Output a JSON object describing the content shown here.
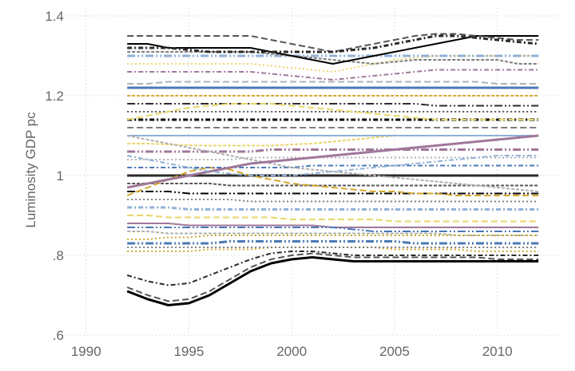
{
  "chart_data": {
    "type": "line",
    "title": "",
    "xlabel": "",
    "ylabel": "Luminosity GDP pc",
    "xlim": [
      1989,
      2013
    ],
    "ylim": [
      0.6,
      1.42
    ],
    "x_ticks": [
      "1990",
      "1995",
      "2000",
      "2005",
      "2010"
    ],
    "y_ticks": [
      ".6",
      ".8",
      "1",
      "1.2",
      "1.4"
    ],
    "grid": true,
    "legend": "none",
    "note": "",
    "palette": [
      "#000000",
      "#555555",
      "#2b2b2b",
      "#d4a72c",
      "#4a78b5",
      "#b0b0b0",
      "#a0779a",
      "#e8d66a",
      "#8fb0d6",
      "#7d7d7d"
    ],
    "series": [
      {
        "values": [
          0.71,
          0.69,
          0.675,
          0.68,
          0.7,
          0.73,
          0.76,
          0.78,
          0.79,
          0.795,
          0.79,
          0.785,
          0.785,
          0.785,
          0.785,
          0.785,
          0.785,
          0.785,
          0.785,
          0.785,
          0.785
        ]
      },
      {
        "values": [
          0.72,
          0.7,
          0.685,
          0.69,
          0.71,
          0.74,
          0.77,
          0.79,
          0.8,
          0.805,
          0.8,
          0.795,
          0.795,
          0.795,
          0.795,
          0.795,
          0.795,
          0.795,
          0.79,
          0.79,
          0.79
        ]
      },
      {
        "values": [
          0.75,
          0.735,
          0.725,
          0.73,
          0.75,
          0.77,
          0.79,
          0.805,
          0.81,
          0.81,
          0.805,
          0.8,
          0.8,
          0.8,
          0.8,
          0.8,
          0.8,
          0.8,
          0.8,
          0.8,
          0.8
        ]
      },
      {
        "values": [
          0.81,
          0.81,
          0.81,
          0.81,
          0.815,
          0.815,
          0.815,
          0.82,
          0.82,
          0.82,
          0.82,
          0.82,
          0.82,
          0.815,
          0.815,
          0.815,
          0.815,
          0.81,
          0.81,
          0.81,
          0.81
        ]
      },
      {
        "values": [
          0.83,
          0.83,
          0.83,
          0.83,
          0.83,
          0.835,
          0.835,
          0.835,
          0.835,
          0.835,
          0.835,
          0.835,
          0.835,
          0.835,
          0.83,
          0.83,
          0.83,
          0.83,
          0.83,
          0.83,
          0.83
        ]
      },
      {
        "values": [
          0.86,
          0.86,
          0.855,
          0.855,
          0.855,
          0.855,
          0.855,
          0.855,
          0.855,
          0.855,
          0.855,
          0.855,
          0.855,
          0.855,
          0.855,
          0.855,
          0.85,
          0.85,
          0.85,
          0.85,
          0.85
        ]
      },
      {
        "values": [
          0.88,
          0.88,
          0.88,
          0.875,
          0.875,
          0.875,
          0.875,
          0.875,
          0.875,
          0.875,
          0.87,
          0.87,
          0.87,
          0.87,
          0.87,
          0.87,
          0.87,
          0.87,
          0.87,
          0.87,
          0.87
        ]
      },
      {
        "values": [
          0.9,
          0.9,
          0.895,
          0.895,
          0.895,
          0.895,
          0.895,
          0.895,
          0.89,
          0.89,
          0.89,
          0.89,
          0.89,
          0.885,
          0.885,
          0.885,
          0.885,
          0.885,
          0.885,
          0.885,
          0.885
        ]
      },
      {
        "values": [
          0.92,
          0.92,
          0.92,
          0.915,
          0.915,
          0.915,
          0.915,
          0.915,
          0.915,
          0.915,
          0.915,
          0.915,
          0.915,
          0.915,
          0.915,
          0.915,
          0.915,
          0.915,
          0.915,
          0.915,
          0.915
        ]
      },
      {
        "values": [
          0.94,
          0.94,
          0.94,
          0.94,
          0.94,
          0.94,
          0.935,
          0.935,
          0.935,
          0.935,
          0.935,
          0.935,
          0.935,
          0.935,
          0.935,
          0.935,
          0.935,
          0.935,
          0.935,
          0.935,
          0.935
        ]
      },
      {
        "values": [
          0.96,
          0.96,
          0.96,
          0.955,
          0.955,
          0.955,
          0.955,
          0.955,
          0.955,
          0.955,
          0.955,
          0.955,
          0.955,
          0.955,
          0.955,
          0.955,
          0.955,
          0.955,
          0.955,
          0.955,
          0.955
        ]
      },
      {
        "values": [
          0.98,
          0.98,
          0.98,
          0.98,
          0.98,
          0.975,
          0.975,
          0.975,
          0.975,
          0.975,
          0.975,
          0.975,
          0.975,
          0.975,
          0.975,
          0.975,
          0.975,
          0.975,
          0.975,
          0.975,
          0.975
        ]
      },
      {
        "values": [
          1.0,
          1.0,
          1.0,
          1.0,
          1.0,
          1.0,
          1.0,
          1.0,
          1.0,
          1.0,
          1.0,
          1.0,
          1.0,
          1.0,
          1.0,
          1.0,
          1.0,
          1.0,
          1.0,
          1.0,
          1.0
        ]
      },
      {
        "values": [
          0.95,
          0.97,
          0.99,
          1.01,
          1.02,
          1.015,
          1.0,
          0.99,
          0.98,
          0.975,
          0.97,
          0.965,
          0.96,
          0.96,
          0.955,
          0.955,
          0.95,
          0.95,
          0.95,
          0.95,
          0.95
        ]
      },
      {
        "values": [
          1.02,
          1.02,
          1.02,
          1.02,
          1.02,
          1.02,
          1.02,
          1.02,
          1.02,
          1.025,
          1.025,
          1.025,
          1.025,
          1.025,
          1.025,
          1.025,
          1.025,
          1.025,
          1.025,
          1.025,
          1.025
        ]
      },
      {
        "values": [
          1.04,
          1.04,
          1.04,
          1.04,
          1.04,
          1.04,
          1.045,
          1.045,
          1.045,
          1.045,
          1.045,
          1.045,
          1.045,
          1.045,
          1.045,
          1.045,
          1.045,
          1.045,
          1.045,
          1.045,
          1.045
        ]
      },
      {
        "values": [
          1.06,
          1.06,
          1.06,
          1.06,
          1.06,
          1.06,
          1.06,
          1.065,
          1.065,
          1.065,
          1.065,
          1.065,
          1.065,
          1.065,
          1.065,
          1.065,
          1.065,
          1.065,
          1.065,
          1.065,
          1.065
        ]
      },
      {
        "values": [
          1.08,
          1.08,
          1.078,
          1.076,
          1.075,
          1.075,
          1.075,
          1.075,
          1.078,
          1.08,
          1.085,
          1.09,
          1.095,
          1.1,
          1.1,
          1.1,
          1.1,
          1.1,
          1.1,
          1.1,
          1.1
        ]
      },
      {
        "values": [
          1.1,
          1.1,
          1.1,
          1.1,
          1.1,
          1.1,
          1.1,
          1.1,
          1.1,
          1.1,
          1.1,
          1.1,
          1.1,
          1.1,
          1.1,
          1.1,
          1.1,
          1.1,
          1.1,
          1.1,
          1.1
        ]
      },
      {
        "values": [
          1.12,
          1.12,
          1.12,
          1.12,
          1.12,
          1.12,
          1.12,
          1.12,
          1.12,
          1.12,
          1.12,
          1.12,
          1.12,
          1.12,
          1.12,
          1.12,
          1.12,
          1.12,
          1.12,
          1.12,
          1.12
        ]
      },
      {
        "values": [
          1.14,
          1.14,
          1.14,
          1.14,
          1.14,
          1.14,
          1.14,
          1.14,
          1.14,
          1.14,
          1.14,
          1.14,
          1.14,
          1.14,
          1.14,
          1.14,
          1.14,
          1.14,
          1.14,
          1.14,
          1.14
        ]
      },
      {
        "values": [
          1.16,
          1.16,
          1.16,
          1.16,
          1.16,
          1.16,
          1.16,
          1.16,
          1.16,
          1.16,
          1.16,
          1.16,
          1.16,
          1.16,
          1.16,
          1.16,
          1.16,
          1.16,
          1.16,
          1.16,
          1.16
        ]
      },
      {
        "values": [
          1.18,
          1.18,
          1.18,
          1.18,
          1.18,
          1.18,
          1.18,
          1.18,
          1.18,
          1.18,
          1.18,
          1.18,
          1.18,
          1.18,
          1.18,
          1.175,
          1.175,
          1.175,
          1.175,
          1.175,
          1.175
        ]
      },
      {
        "values": [
          1.2,
          1.2,
          1.2,
          1.2,
          1.2,
          1.2,
          1.2,
          1.2,
          1.2,
          1.2,
          1.2,
          1.2,
          1.2,
          1.2,
          1.2,
          1.2,
          1.2,
          1.2,
          1.2,
          1.2,
          1.2
        ]
      },
      {
        "values": [
          1.22,
          1.22,
          1.22,
          1.22,
          1.22,
          1.22,
          1.22,
          1.22,
          1.22,
          1.22,
          1.22,
          1.22,
          1.22,
          1.22,
          1.22,
          1.22,
          1.22,
          1.22,
          1.22,
          1.22,
          1.22
        ]
      },
      {
        "values": [
          1.23,
          1.23,
          1.235,
          1.235,
          1.235,
          1.235,
          1.235,
          1.235,
          1.235,
          1.235,
          1.235,
          1.235,
          1.235,
          1.235,
          1.235,
          1.235,
          1.235,
          1.235,
          1.23,
          1.23,
          1.23
        ]
      },
      {
        "values": [
          1.26,
          1.26,
          1.26,
          1.26,
          1.26,
          1.26,
          1.26,
          1.255,
          1.25,
          1.245,
          1.24,
          1.245,
          1.25,
          1.255,
          1.26,
          1.265,
          1.265,
          1.265,
          1.265,
          1.265,
          1.265
        ]
      },
      {
        "values": [
          1.28,
          1.28,
          1.28,
          1.28,
          1.28,
          1.28,
          1.28,
          1.275,
          1.27,
          1.265,
          1.26,
          1.27,
          1.28,
          1.29,
          1.295,
          1.3,
          1.3,
          1.3,
          1.3,
          1.3,
          1.3
        ]
      },
      {
        "values": [
          1.3,
          1.3,
          1.3,
          1.3,
          1.3,
          1.3,
          1.3,
          1.3,
          1.3,
          1.3,
          1.3,
          1.3,
          1.3,
          1.3,
          1.3,
          1.3,
          1.3,
          1.3,
          1.3,
          1.3,
          1.3
        ]
      },
      {
        "values": [
          1.31,
          1.31,
          1.31,
          1.31,
          1.31,
          1.31,
          1.31,
          1.305,
          1.3,
          1.295,
          1.29,
          1.285,
          1.28,
          1.285,
          1.29,
          1.29,
          1.29,
          1.29,
          1.29,
          1.28,
          1.28
        ]
      },
      {
        "values": [
          1.33,
          1.33,
          1.32,
          1.32,
          1.32,
          1.32,
          1.32,
          1.31,
          1.3,
          1.29,
          1.28,
          1.29,
          1.3,
          1.31,
          1.32,
          1.33,
          1.34,
          1.35,
          1.35,
          1.35,
          1.35
        ]
      },
      {
        "values": [
          1.35,
          1.35,
          1.35,
          1.35,
          1.35,
          1.35,
          1.35,
          1.34,
          1.33,
          1.32,
          1.31,
          1.32,
          1.33,
          1.34,
          1.35,
          1.355,
          1.355,
          1.35,
          1.345,
          1.34,
          1.34
        ]
      },
      {
        "values": [
          1.32,
          1.32,
          1.32,
          1.315,
          1.31,
          1.31,
          1.31,
          1.31,
          1.31,
          1.31,
          1.31,
          1.315,
          1.32,
          1.33,
          1.34,
          1.35,
          1.35,
          1.345,
          1.34,
          1.335,
          1.33
        ]
      },
      {
        "values": [
          0.84,
          0.84,
          0.845,
          0.845,
          0.85,
          0.85,
          0.85,
          0.85,
          0.85,
          0.85,
          0.85,
          0.85,
          0.85,
          0.85,
          0.85,
          0.85,
          0.85,
          0.85,
          0.85,
          0.85,
          0.85
        ]
      },
      {
        "values": [
          0.87,
          0.87,
          0.87,
          0.87,
          0.87,
          0.87,
          0.87,
          0.87,
          0.87,
          0.87,
          0.87,
          0.865,
          0.86,
          0.86,
          0.86,
          0.86,
          0.86,
          0.86,
          0.86,
          0.86,
          0.86
        ]
      },
      {
        "values": [
          1.1,
          1.09,
          1.08,
          1.07,
          1.06,
          1.05,
          1.04,
          1.03,
          1.02,
          1.015,
          1.01,
          1.005,
          1.0,
          0.995,
          0.99,
          0.985,
          0.98,
          0.975,
          0.97,
          0.965,
          0.96
        ]
      },
      {
        "values": [
          0.97,
          0.98,
          0.99,
          1.0,
          1.01,
          1.02,
          1.03,
          1.035,
          1.04,
          1.045,
          1.05,
          1.055,
          1.06,
          1.065,
          1.07,
          1.075,
          1.08,
          1.085,
          1.09,
          1.095,
          1.1
        ]
      },
      {
        "values": [
          1.14,
          1.15,
          1.16,
          1.17,
          1.175,
          1.18,
          1.18,
          1.18,
          1.175,
          1.17,
          1.165,
          1.16,
          1.155,
          1.15,
          1.145,
          1.14,
          1.14,
          1.14,
          1.14,
          1.14,
          1.14
        ]
      },
      {
        "values": [
          1.05,
          1.04,
          1.03,
          1.02,
          1.01,
          1.005,
          1.0,
          1.0,
          1.0,
          1.005,
          1.01,
          1.015,
          1.02,
          1.025,
          1.03,
          1.035,
          1.04,
          1.045,
          1.05,
          1.05,
          1.05
        ]
      },
      {
        "values": [
          0.82,
          0.82,
          0.82,
          0.82,
          0.82,
          0.82,
          0.82,
          0.82,
          0.82,
          0.82,
          0.82,
          0.82,
          0.82,
          0.82,
          0.82,
          0.82,
          0.82,
          0.82,
          0.82,
          0.82,
          0.82
        ]
      }
    ]
  }
}
